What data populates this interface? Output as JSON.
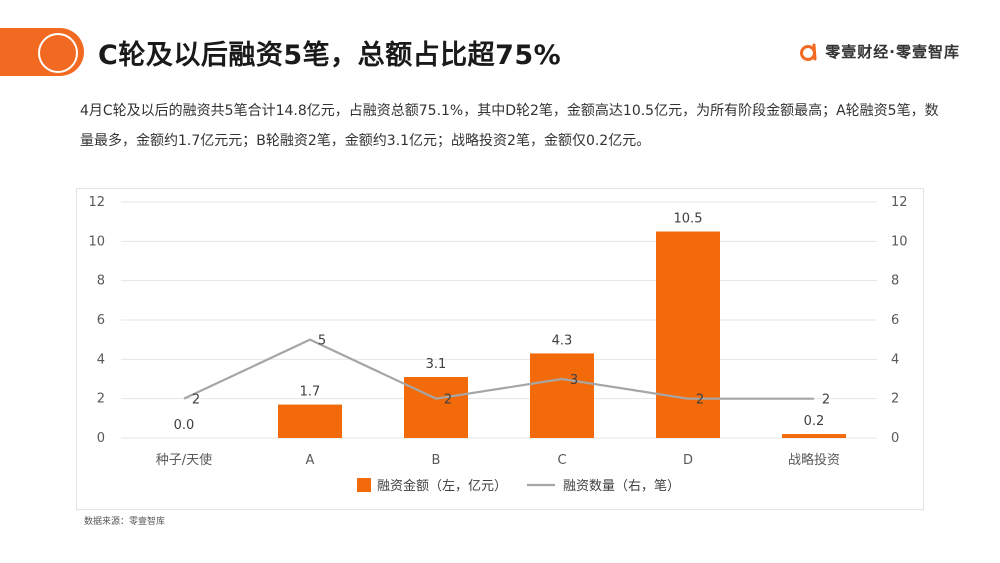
{
  "header": {
    "title": "C轮及以后融资5笔，总额占比超75%",
    "brand": "零壹财经·零壹智库"
  },
  "summary": "4月C轮及以后的融资共5笔合计14.8亿元，占融资总额75.1%，其中D轮2笔，金额高达10.5亿元，为所有阶段金额最高；A轮融资5笔，数量最多，金额约1.7亿元元；B轮融资2笔，金额约3.1亿元；战略投资2笔，金额仅0.2亿元。",
  "source": "数据来源：零壹智库",
  "colors": {
    "accent": "#f26a21",
    "bar": "#f26a09",
    "line": "#a6a6a6",
    "grid": "#e6e6e6"
  },
  "chart_data": {
    "type": "bar",
    "categories": [
      "种子/天使",
      "A",
      "B",
      "C",
      "D",
      "战略投资"
    ],
    "series": [
      {
        "name": "融资金额（左，亿元）",
        "type": "bar",
        "axis": "left",
        "values": [
          0.0,
          1.7,
          3.1,
          4.3,
          10.5,
          0.2
        ],
        "labels": [
          "0.0",
          "1.7",
          "3.1",
          "4.3",
          "10.5",
          "0.2"
        ]
      },
      {
        "name": "融资数量（右，笔）",
        "type": "line",
        "axis": "right",
        "values": [
          2,
          5,
          2,
          3,
          2,
          2
        ],
        "labels": [
          "2",
          "5",
          "2",
          "3",
          "2",
          "2"
        ]
      }
    ],
    "y_left": {
      "min": 0,
      "max": 12,
      "ticks": [
        "0",
        "2",
        "4",
        "6",
        "8",
        "10",
        "12"
      ]
    },
    "y_right": {
      "min": 0,
      "max": 12,
      "ticks": [
        "0",
        "2",
        "4",
        "6",
        "8",
        "10",
        "12"
      ]
    },
    "grid": true,
    "legend": "bottom"
  }
}
